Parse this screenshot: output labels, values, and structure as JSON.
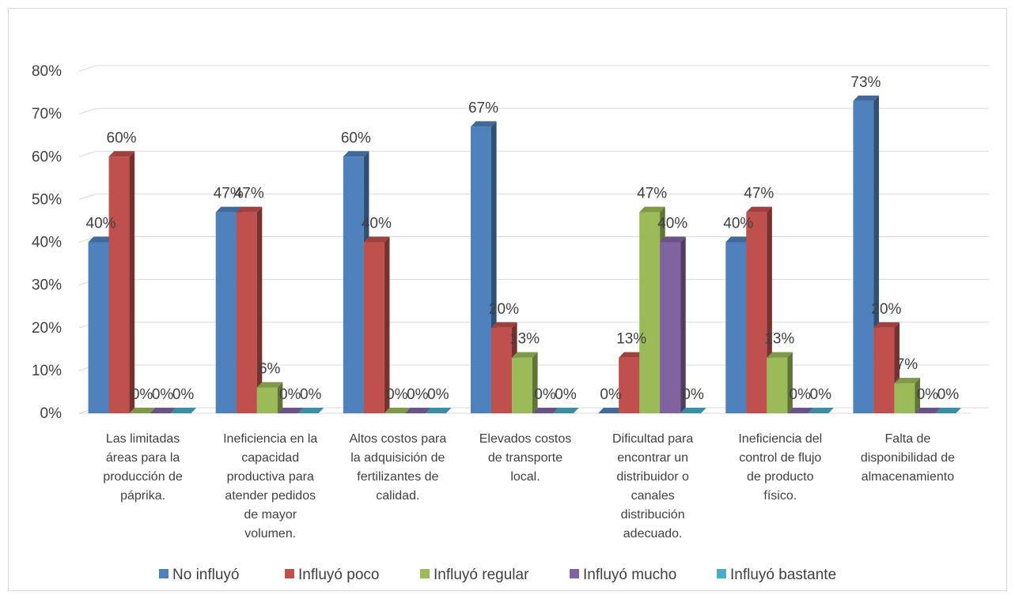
{
  "chart_data": {
    "type": "bar",
    "style": "3d-clustered-column",
    "categories": [
      [
        "Las limitadas",
        "áreas para la",
        "producción de",
        "páprika."
      ],
      [
        "Ineficiencia en la",
        "capacidad",
        "productiva para",
        "atender pedidos",
        "de mayor",
        "volumen."
      ],
      [
        "Altos costos para",
        "la adquisición de",
        "fertilizantes de",
        "calidad."
      ],
      [
        "Elevados costos",
        "de transporte",
        "local."
      ],
      [
        "Dificultad para",
        "encontrar un",
        "distribuidor o",
        "canales",
        "distribución",
        "adecuado."
      ],
      [
        "Ineficiencia del",
        "control de flujo",
        "de producto",
        "físico."
      ],
      [
        "Falta de",
        "disponibilidad de",
        "almacenamiento"
      ]
    ],
    "series": [
      {
        "name": "No influyó",
        "color": "#4f81bd",
        "values": [
          40,
          47,
          60,
          67,
          0,
          40,
          73
        ],
        "labels": [
          "40%",
          "47%",
          "60%",
          "67%",
          "0%",
          "40%",
          "73%"
        ]
      },
      {
        "name": "Influyó poco",
        "color": "#c0504d",
        "values": [
          60,
          47,
          40,
          20,
          13,
          47,
          20
        ],
        "labels": [
          "60%",
          "47%",
          "40%",
          "20%",
          "13%",
          "47%",
          "20%"
        ]
      },
      {
        "name": "Influyó regular",
        "color": "#9bbb59",
        "values": [
          0,
          6,
          0,
          13,
          47,
          13,
          7
        ],
        "labels": [
          "0%",
          "6%",
          "0%",
          "13%",
          "47%",
          "13%",
          "7%"
        ]
      },
      {
        "name": "Influyó mucho",
        "color": "#8064a2",
        "values": [
          0,
          0,
          0,
          0,
          40,
          0,
          0
        ],
        "labels": [
          "0%",
          "0%",
          "0%",
          "0%",
          "40%",
          "0%",
          "0%"
        ]
      },
      {
        "name": "Influyó bastante",
        "color": "#4bacc6",
        "values": [
          0,
          0,
          0,
          0,
          0,
          0,
          0
        ],
        "labels": [
          "0%",
          "0%",
          "0%",
          "0%",
          "0%",
          "0%",
          "0%"
        ]
      }
    ],
    "y_ticks": [
      "0%",
      "10%",
      "20%",
      "30%",
      "40%",
      "50%",
      "60%",
      "70%",
      "80%"
    ],
    "ylim": [
      0,
      80
    ],
    "grid": true,
    "legend": "bottom"
  }
}
